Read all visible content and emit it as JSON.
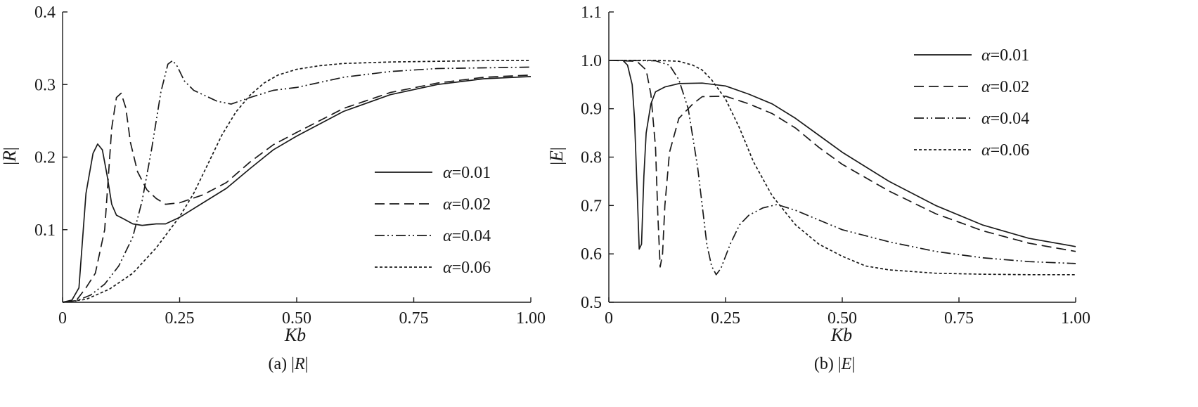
{
  "chart_data": [
    {
      "type": "line",
      "panel": "a",
      "caption_prefix": "(a) |",
      "caption_var": "R",
      "caption_suffix": "|",
      "xlabel": "Kb",
      "ylabel_prefix": "|",
      "ylabel_var": "R",
      "ylabel_suffix": "|",
      "xlim": [
        0,
        1.0
      ],
      "ylim": [
        0,
        0.4
      ],
      "xticks": [
        0,
        0.25,
        0.5,
        0.75,
        1.0
      ],
      "xtick_labels": [
        "0",
        "0.25",
        "0.50",
        "0.75",
        "1.00"
      ],
      "yticks": [
        0.1,
        0.2,
        0.3,
        0.4
      ],
      "ytick_labels": [
        "0.1",
        "0.2",
        "0.3",
        "0.4"
      ],
      "legend_position": "center-right",
      "series": [
        {
          "name": "α=0.01",
          "symbol": "α",
          "value_text": "=0.01",
          "style": "solid",
          "x": [
            0,
            0.02,
            0.035,
            0.05,
            0.065,
            0.075,
            0.085,
            0.095,
            0.105,
            0.115,
            0.13,
            0.15,
            0.17,
            0.2,
            0.22,
            0.25,
            0.3,
            0.35,
            0.4,
            0.45,
            0.5,
            0.6,
            0.7,
            0.8,
            0.9,
            1.0
          ],
          "y": [
            0,
            0.003,
            0.02,
            0.15,
            0.205,
            0.218,
            0.21,
            0.175,
            0.135,
            0.12,
            0.115,
            0.108,
            0.106,
            0.108,
            0.108,
            0.117,
            0.137,
            0.157,
            0.184,
            0.21,
            0.229,
            0.263,
            0.286,
            0.3,
            0.308,
            0.311
          ]
        },
        {
          "name": "α=0.02",
          "symbol": "α",
          "value_text": "=0.02",
          "style": "dashed",
          "x": [
            0,
            0.03,
            0.05,
            0.07,
            0.09,
            0.105,
            0.115,
            0.125,
            0.135,
            0.145,
            0.16,
            0.18,
            0.2,
            0.22,
            0.25,
            0.3,
            0.35,
            0.4,
            0.45,
            0.5,
            0.6,
            0.7,
            0.8,
            0.9,
            1.0
          ],
          "y": [
            0,
            0.003,
            0.02,
            0.04,
            0.1,
            0.24,
            0.282,
            0.288,
            0.268,
            0.22,
            0.18,
            0.155,
            0.143,
            0.135,
            0.137,
            0.148,
            0.165,
            0.193,
            0.217,
            0.234,
            0.267,
            0.289,
            0.302,
            0.31,
            0.313
          ]
        },
        {
          "name": "α=0.04",
          "symbol": "α",
          "value_text": "=0.04",
          "style": "dashdotdot",
          "x": [
            0,
            0.03,
            0.06,
            0.09,
            0.12,
            0.15,
            0.17,
            0.19,
            0.21,
            0.225,
            0.235,
            0.245,
            0.26,
            0.28,
            0.3,
            0.33,
            0.36,
            0.4,
            0.45,
            0.5,
            0.6,
            0.7,
            0.8,
            0.9,
            1.0
          ],
          "y": [
            0,
            0.002,
            0.01,
            0.025,
            0.05,
            0.09,
            0.14,
            0.21,
            0.29,
            0.328,
            0.333,
            0.325,
            0.305,
            0.292,
            0.286,
            0.277,
            0.273,
            0.282,
            0.292,
            0.296,
            0.31,
            0.318,
            0.322,
            0.323,
            0.324
          ]
        },
        {
          "name": "α=0.06",
          "symbol": "α",
          "value_text": "=0.06",
          "style": "dotted",
          "x": [
            0,
            0.05,
            0.1,
            0.15,
            0.2,
            0.25,
            0.28,
            0.31,
            0.34,
            0.37,
            0.4,
            0.43,
            0.46,
            0.5,
            0.55,
            0.6,
            0.7,
            0.8,
            0.9,
            1.0
          ],
          "y": [
            0,
            0.004,
            0.018,
            0.04,
            0.075,
            0.118,
            0.15,
            0.19,
            0.23,
            0.262,
            0.285,
            0.302,
            0.313,
            0.321,
            0.326,
            0.329,
            0.331,
            0.332,
            0.333,
            0.333
          ]
        }
      ]
    },
    {
      "type": "line",
      "panel": "b",
      "caption_prefix": "(b) |",
      "caption_var": "E",
      "caption_suffix": "|",
      "xlabel": "Kb",
      "ylabel_prefix": "|",
      "ylabel_var": "E",
      "ylabel_suffix": "|",
      "xlim": [
        0,
        1.0
      ],
      "ylim": [
        0.5,
        1.1
      ],
      "xticks": [
        0,
        0.25,
        0.5,
        0.75,
        1.0
      ],
      "xtick_labels": [
        "0",
        "0.25",
        "0.50",
        "0.75",
        "1.00"
      ],
      "yticks": [
        0.5,
        0.6,
        0.7,
        0.8,
        0.9,
        1.0,
        1.1
      ],
      "ytick_labels": [
        "0.5",
        "0.6",
        "0.7",
        "0.8",
        "0.9",
        "1.0",
        "1.1"
      ],
      "legend_position": "top-right",
      "series": [
        {
          "name": "α=0.01",
          "symbol": "α",
          "value_text": "=0.01",
          "style": "solid",
          "x": [
            0,
            0.03,
            0.04,
            0.05,
            0.055,
            0.06,
            0.065,
            0.07,
            0.075,
            0.08,
            0.09,
            0.1,
            0.12,
            0.15,
            0.2,
            0.25,
            0.3,
            0.35,
            0.4,
            0.45,
            0.5,
            0.6,
            0.7,
            0.8,
            0.9,
            1.0
          ],
          "y": [
            1.0,
            1.0,
            0.99,
            0.95,
            0.88,
            0.75,
            0.61,
            0.62,
            0.76,
            0.85,
            0.91,
            0.935,
            0.945,
            0.952,
            0.953,
            0.947,
            0.93,
            0.91,
            0.88,
            0.845,
            0.81,
            0.75,
            0.7,
            0.66,
            0.632,
            0.615
          ]
        },
        {
          "name": "α=0.02",
          "symbol": "α",
          "value_text": "=0.02",
          "style": "dashed",
          "x": [
            0,
            0.06,
            0.08,
            0.09,
            0.1,
            0.105,
            0.11,
            0.115,
            0.12,
            0.13,
            0.15,
            0.18,
            0.2,
            0.25,
            0.3,
            0.35,
            0.4,
            0.45,
            0.5,
            0.6,
            0.7,
            0.8,
            0.9,
            1.0
          ],
          "y": [
            1.0,
            0.998,
            0.98,
            0.93,
            0.82,
            0.68,
            0.573,
            0.6,
            0.7,
            0.81,
            0.88,
            0.91,
            0.925,
            0.926,
            0.91,
            0.89,
            0.86,
            0.82,
            0.785,
            0.73,
            0.683,
            0.648,
            0.622,
            0.605
          ]
        },
        {
          "name": "α=0.04",
          "symbol": "α",
          "value_text": "=0.04",
          "style": "dashdotdot",
          "x": [
            0,
            0.1,
            0.13,
            0.15,
            0.17,
            0.19,
            0.2,
            0.21,
            0.22,
            0.23,
            0.24,
            0.26,
            0.28,
            0.3,
            0.33,
            0.36,
            0.4,
            0.45,
            0.5,
            0.6,
            0.7,
            0.8,
            0.9,
            1.0
          ],
          "y": [
            1.0,
            0.999,
            0.99,
            0.96,
            0.9,
            0.78,
            0.7,
            0.62,
            0.575,
            0.557,
            0.57,
            0.62,
            0.66,
            0.68,
            0.695,
            0.702,
            0.69,
            0.67,
            0.65,
            0.625,
            0.605,
            0.592,
            0.584,
            0.58
          ]
        },
        {
          "name": "α=0.06",
          "symbol": "α",
          "value_text": "=0.06",
          "style": "dotted",
          "x": [
            0,
            0.1,
            0.15,
            0.18,
            0.2,
            0.22,
            0.25,
            0.28,
            0.31,
            0.35,
            0.4,
            0.45,
            0.5,
            0.55,
            0.6,
            0.7,
            0.8,
            0.9,
            1.0
          ],
          "y": [
            1.0,
            1.0,
            0.998,
            0.99,
            0.98,
            0.96,
            0.92,
            0.86,
            0.79,
            0.72,
            0.66,
            0.62,
            0.595,
            0.575,
            0.567,
            0.56,
            0.558,
            0.557,
            0.557
          ]
        }
      ]
    }
  ]
}
